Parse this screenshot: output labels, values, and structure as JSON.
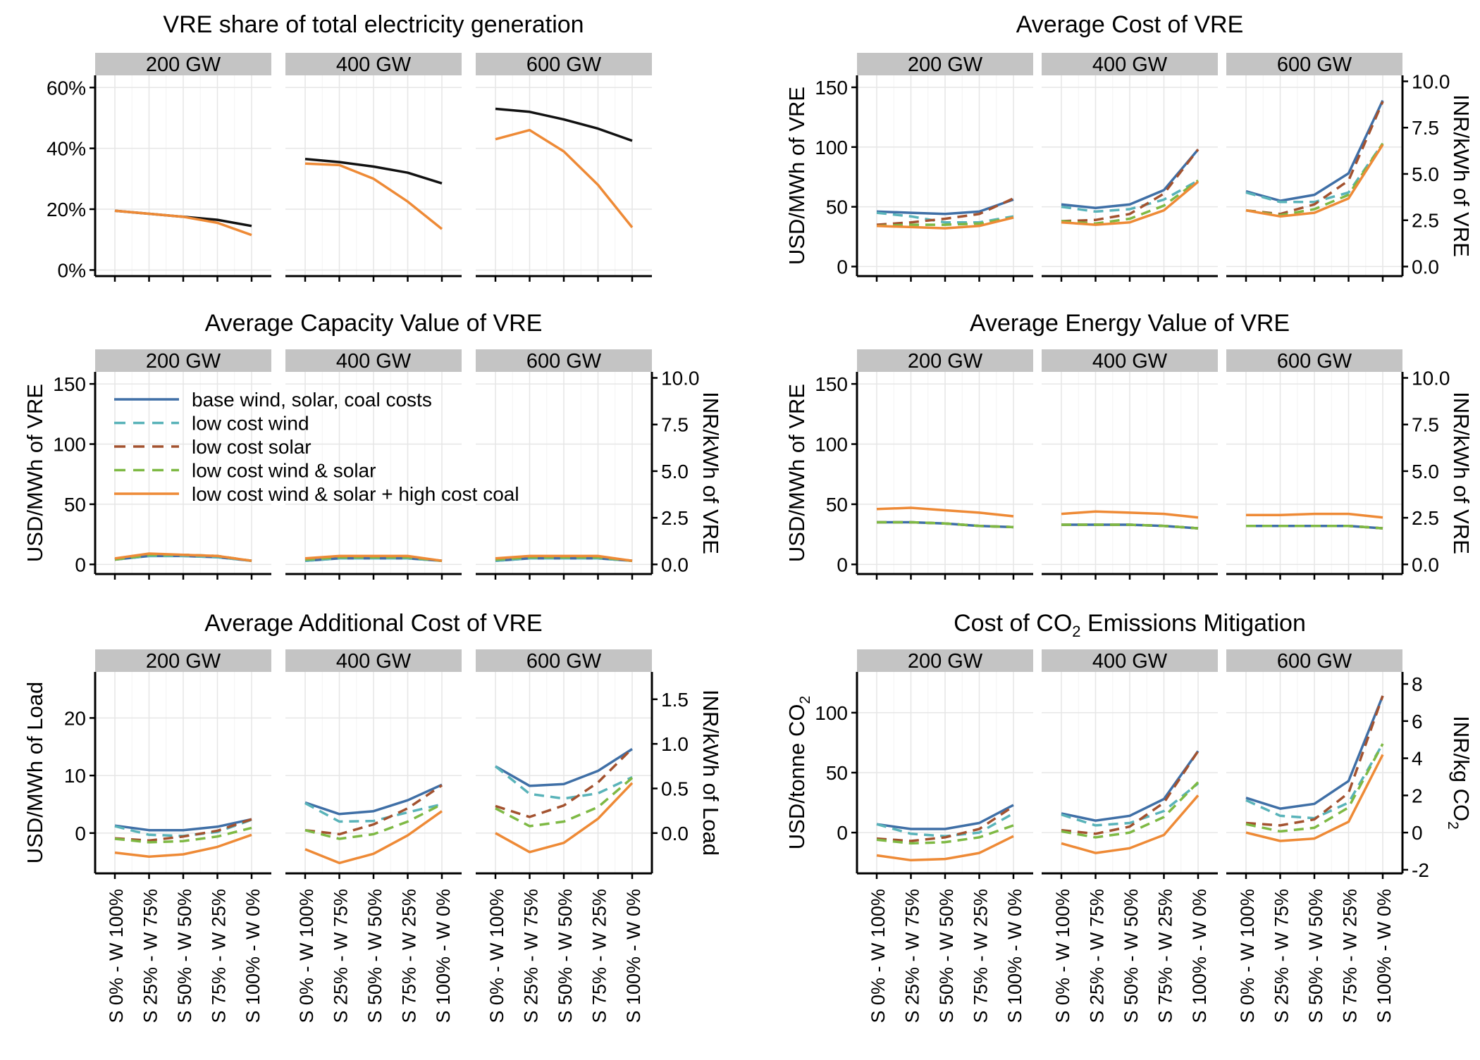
{
  "colors": {
    "base": "#3f6fa6",
    "low_wind": "#59b3b9",
    "low_solar": "#a3522f",
    "low_ws": "#7eb944",
    "low_ws_high_coal": "#ee8a36",
    "share": "#111111",
    "strip": "#c4c4c4",
    "grid": "#e6e6e6"
  },
  "chart_data": [
    {
      "type": "line",
      "title": "VRE share of total electricity generation",
      "facets": [
        "200 GW",
        "400 GW",
        "600 GW"
      ],
      "categories": [
        "S 0% - W 100%",
        "S 25% - W 75%",
        "S 50% - W 50%",
        "S 75% - W 25%",
        "S 100% - W 0%"
      ],
      "ylim": [
        -2,
        64
      ],
      "yticks": [
        0,
        20,
        40,
        60
      ],
      "ytick_labels": [
        "0%",
        "20%",
        "40%",
        "60%"
      ],
      "ylabel": "",
      "series": [
        {
          "key": "share",
          "dash": "solid",
          "values": [
            [
              19.5,
              18.5,
              17.5,
              16.5,
              14.5
            ],
            [
              36.5,
              35.5,
              34,
              32,
              28.5
            ],
            [
              53,
              52,
              49.5,
              46.5,
              42.5
            ]
          ]
        },
        {
          "key": "low_ws_high_coal",
          "dash": "solid",
          "values": [
            [
              19.5,
              18.5,
              17.5,
              15.5,
              11.5
            ],
            [
              35,
              34.5,
              30,
              22.5,
              13.5
            ],
            [
              43,
              46,
              39,
              28,
              14
            ]
          ]
        }
      ]
    },
    {
      "type": "line",
      "title": "Average Cost of VRE",
      "facets": [
        "200 GW",
        "400 GW",
        "600 GW"
      ],
      "categories": [
        "S 0% - W 100%",
        "S 25% - W 75%",
        "S 50% - W 50%",
        "S 75% - W 25%",
        "S 100% - W 0%"
      ],
      "ylim": [
        -8,
        160
      ],
      "yticks": [
        0,
        50,
        100,
        150
      ],
      "ytick_labels": [
        "0",
        "50",
        "100",
        "150"
      ],
      "ylabel": "USD/MWh of VRE",
      "y2ticks": [
        0,
        2.5,
        5.0,
        7.5,
        10.0
      ],
      "y2tick_labels": [
        "0.0",
        "2.5",
        "5.0",
        "7.5",
        "10.0"
      ],
      "y2_factor": 15.5,
      "y2label": "INR/kWh of VRE",
      "series": [
        {
          "key": "base",
          "dash": "solid",
          "values": [
            [
              46,
              45,
              44,
              46,
              56
            ],
            [
              52,
              49,
              52,
              64,
              98
            ],
            [
              63,
              55,
              60,
              78,
              139
            ]
          ]
        },
        {
          "key": "low_wind",
          "dash": "dashed",
          "values": [
            [
              45,
              42,
              37,
              37,
              42
            ],
            [
              50,
              46,
              48,
              56,
              72
            ],
            [
              62,
              54,
              54,
              62,
              103
            ]
          ]
        },
        {
          "key": "low_solar",
          "dash": "dashed",
          "values": [
            [
              35,
              37,
              40,
              44,
              57
            ],
            [
              38,
              39,
              44,
              61,
              98
            ],
            [
              47,
              44,
              52,
              72,
              138
            ]
          ]
        },
        {
          "key": "low_ws",
          "dash": "dashed",
          "values": [
            [
              34,
              35,
              35,
              36,
              41
            ],
            [
              38,
              36,
              40,
              51,
              72
            ],
            [
              47,
              43,
              48,
              60,
              103
            ]
          ]
        },
        {
          "key": "low_ws_high_coal",
          "dash": "solid",
          "values": [
            [
              34,
              33,
              32,
              34,
              41
            ],
            [
              37,
              35,
              37,
              47,
              71
            ],
            [
              47,
              42,
              45,
              57,
              102
            ]
          ]
        }
      ]
    },
    {
      "type": "line",
      "title": "Average Capacity Value of VRE",
      "facets": [
        "200 GW",
        "400 GW",
        "600 GW"
      ],
      "categories": [
        "S 0% - W 100%",
        "S 25% - W 75%",
        "S 50% - W 50%",
        "S 75% - W 25%",
        "S 100% - W 0%"
      ],
      "ylim": [
        -8,
        160
      ],
      "yticks": [
        0,
        50,
        100,
        150
      ],
      "ytick_labels": [
        "0",
        "50",
        "100",
        "150"
      ],
      "ylabel": "USD/MWh of VRE",
      "y2ticks": [
        0,
        2.5,
        5.0,
        7.5,
        10.0
      ],
      "y2tick_labels": [
        "0.0",
        "2.5",
        "5.0",
        "7.5",
        "10.0"
      ],
      "y2_factor": 15.5,
      "y2label": "INR/kWh of VRE",
      "legend": {
        "placement": "top-left inside first panel"
      },
      "series": [
        {
          "key": "base",
          "dash": "solid",
          "values": [
            [
              4,
              7,
              7,
              6,
              3
            ],
            [
              3,
              5,
              5,
              5,
              3
            ],
            [
              3,
              5,
              5,
              5,
              3
            ]
          ]
        },
        {
          "key": "low_wind",
          "dash": "dashed",
          "values": [
            [
              4,
              7,
              7,
              6,
              3
            ],
            [
              3,
              5,
              5,
              5,
              3
            ],
            [
              3,
              5,
              5,
              5,
              3
            ]
          ]
        },
        {
          "key": "low_solar",
          "dash": "dashed",
          "values": [
            [
              4,
              8,
              8,
              7,
              3
            ],
            [
              4,
              6,
              6,
              6,
              3
            ],
            [
              4,
              6,
              6,
              6,
              3
            ]
          ]
        },
        {
          "key": "low_ws",
          "dash": "dashed",
          "values": [
            [
              4,
              8,
              8,
              7,
              3
            ],
            [
              4,
              6,
              6,
              6,
              3
            ],
            [
              4,
              6,
              6,
              6,
              3
            ]
          ]
        },
        {
          "key": "low_ws_high_coal",
          "dash": "solid",
          "values": [
            [
              5,
              9,
              8,
              7,
              3
            ],
            [
              5,
              7,
              7,
              7,
              3
            ],
            [
              5,
              7,
              7,
              7,
              3
            ]
          ]
        }
      ]
    },
    {
      "type": "line",
      "title": "Average Energy Value of VRE",
      "facets": [
        "200 GW",
        "400 GW",
        "600 GW"
      ],
      "categories": [
        "S 0% - W 100%",
        "S 25% - W 75%",
        "S 50% - W 50%",
        "S 75% - W 25%",
        "S 100% - W 0%"
      ],
      "ylim": [
        -8,
        160
      ],
      "yticks": [
        0,
        50,
        100,
        150
      ],
      "ytick_labels": [
        "0",
        "50",
        "100",
        "150"
      ],
      "ylabel": "USD/MWh of VRE",
      "y2ticks": [
        0,
        2.5,
        5.0,
        7.5,
        10.0
      ],
      "y2tick_labels": [
        "0.0",
        "2.5",
        "5.0",
        "7.5",
        "10.0"
      ],
      "y2_factor": 15.5,
      "y2label": "INR/kWh of VRE",
      "series": [
        {
          "key": "base",
          "dash": "solid",
          "values": [
            [
              35,
              35,
              34,
              32,
              31
            ],
            [
              33,
              33,
              33,
              32,
              30
            ],
            [
              32,
              32,
              32,
              32,
              30
            ]
          ]
        },
        {
          "key": "low_wind",
          "dash": "dashed",
          "values": [
            [
              35,
              35,
              34,
              32,
              31
            ],
            [
              33,
              33,
              33,
              32,
              30
            ],
            [
              32,
              32,
              32,
              32,
              30
            ]
          ]
        },
        {
          "key": "low_solar",
          "dash": "dashed",
          "values": [
            [
              35,
              35,
              34,
              32,
              31
            ],
            [
              33,
              33,
              33,
              32,
              30
            ],
            [
              32,
              32,
              32,
              32,
              30
            ]
          ]
        },
        {
          "key": "low_ws",
          "dash": "dashed",
          "values": [
            [
              35,
              35,
              34,
              32,
              31
            ],
            [
              33,
              33,
              33,
              32,
              30
            ],
            [
              32,
              32,
              32,
              32,
              30
            ]
          ]
        },
        {
          "key": "low_ws_high_coal",
          "dash": "solid",
          "values": [
            [
              46,
              47,
              45,
              43,
              40
            ],
            [
              42,
              44,
              43,
              42,
              39
            ],
            [
              41,
              41,
              42,
              42,
              39
            ]
          ]
        }
      ]
    },
    {
      "type": "line",
      "title": "Average Additional Cost of VRE",
      "facets": [
        "200 GW",
        "400 GW",
        "600 GW"
      ],
      "categories": [
        "S 0% - W 100%",
        "S 25% - W 75%",
        "S 50% - W 50%",
        "S 75% - W 25%",
        "S 100% - W 0%"
      ],
      "ylim": [
        -7,
        28
      ],
      "yticks": [
        0,
        10,
        20
      ],
      "ytick_labels": [
        "0",
        "10",
        "20"
      ],
      "ylabel": "USD/MWh of Load",
      "y2ticks": [
        0,
        0.5,
        1.0,
        1.5
      ],
      "y2tick_labels": [
        "0.0",
        "0.5",
        "1.0",
        "1.5"
      ],
      "y2_factor": 15.5,
      "y2label": "INR/kWh of Load",
      "series": [
        {
          "key": "base",
          "dash": "solid",
          "values": [
            [
              1.3,
              0.5,
              0.5,
              1.1,
              2.4
            ],
            [
              5.3,
              3.3,
              3.8,
              5.7,
              8.4
            ],
            [
              11.6,
              8.2,
              8.5,
              10.8,
              14.6
            ]
          ]
        },
        {
          "key": "low_wind",
          "dash": "dashed",
          "values": [
            [
              1.2,
              -0.3,
              -0.5,
              0.2,
              2.3
            ],
            [
              5.2,
              2.0,
              2.1,
              3.6,
              5.0
            ],
            [
              11.6,
              6.8,
              6.0,
              6.9,
              9.7
            ]
          ]
        },
        {
          "key": "low_solar",
          "dash": "dashed",
          "values": [
            [
              -0.9,
              -1.3,
              -0.6,
              0.4,
              2.4
            ],
            [
              0.5,
              -0.2,
              1.5,
              4.3,
              8.3
            ],
            [
              4.7,
              2.8,
              4.8,
              8.8,
              14.7
            ]
          ]
        },
        {
          "key": "low_ws",
          "dash": "dashed",
          "values": [
            [
              -1.0,
              -1.6,
              -1.4,
              -0.6,
              0.9
            ],
            [
              0.5,
              -1.0,
              -0.2,
              2.0,
              5.0
            ],
            [
              4.3,
              1.2,
              2.0,
              4.5,
              9.6
            ]
          ]
        },
        {
          "key": "low_ws_high_coal",
          "dash": "solid",
          "values": [
            [
              -3.4,
              -4.1,
              -3.7,
              -2.4,
              -0.3
            ],
            [
              -2.8,
              -5.2,
              -3.6,
              -0.4,
              3.8
            ],
            [
              0.0,
              -3.3,
              -1.7,
              2.5,
              8.7
            ]
          ]
        }
      ]
    },
    {
      "type": "line",
      "title": "Cost of CO",
      "title_sub": "2",
      "title_rest": " Emissions Mitigation",
      "facets": [
        "200 GW",
        "400 GW",
        "600 GW"
      ],
      "categories": [
        "S 0% - W 100%",
        "S 25% - W 75%",
        "S 50% - W 50%",
        "S 75% - W 25%",
        "S 100% - W 0%"
      ],
      "ylim": [
        -34,
        134
      ],
      "yticks": [
        0,
        50,
        100
      ],
      "ytick_labels": [
        "0",
        "50",
        "100"
      ],
      "ylabel": "USD/tonne CO",
      "ylabel_sub": "2",
      "y2ticks": [
        -2,
        0,
        2,
        4,
        6,
        8
      ],
      "y2tick_labels": [
        "-2",
        "0",
        "2",
        "4",
        "6",
        "8"
      ],
      "y2_factor": 15.5,
      "y2label": "INR/kg CO",
      "y2label_sub": "2",
      "series": [
        {
          "key": "base",
          "dash": "solid",
          "values": [
            [
              7,
              3,
              3,
              8,
              23
            ],
            [
              16,
              10,
              14,
              28,
              68
            ],
            [
              29,
              20,
              24,
              43,
              114
            ]
          ]
        },
        {
          "key": "low_wind",
          "dash": "dashed",
          "values": [
            [
              7,
              -1,
              -3,
              0,
              16
            ],
            [
              15,
              6,
              8,
              18,
              41
            ],
            [
              27,
              14,
              12,
              25,
              74
            ]
          ]
        },
        {
          "key": "low_solar",
          "dash": "dashed",
          "values": [
            [
              -5,
              -7,
              -4,
              3,
              22
            ],
            [
              2,
              -1,
              5,
              25,
              68
            ],
            [
              8,
              6,
              11,
              33,
              114
            ]
          ]
        },
        {
          "key": "low_ws",
          "dash": "dashed",
          "values": [
            [
              -6,
              -9,
              -8,
              -4,
              6
            ],
            [
              1,
              -4,
              0,
              13,
              42
            ],
            [
              7,
              1,
              4,
              21,
              74
            ]
          ]
        },
        {
          "key": "low_ws_high_coal",
          "dash": "solid",
          "values": [
            [
              -19,
              -23,
              -22,
              -17,
              -3
            ],
            [
              -9,
              -17,
              -13,
              -2,
              31
            ],
            [
              0,
              -7,
              -5,
              9,
              65
            ]
          ]
        }
      ]
    }
  ],
  "legend": [
    {
      "key": "base",
      "dash": "solid",
      "label": "base wind, solar, coal costs"
    },
    {
      "key": "low_wind",
      "dash": "dashed",
      "label": "low cost wind"
    },
    {
      "key": "low_solar",
      "dash": "dashed",
      "label": "low cost solar"
    },
    {
      "key": "low_ws",
      "dash": "dashed",
      "label": "low cost wind & solar"
    },
    {
      "key": "low_ws_high_coal",
      "dash": "solid",
      "label": "low cost wind & solar + high cost coal"
    }
  ]
}
